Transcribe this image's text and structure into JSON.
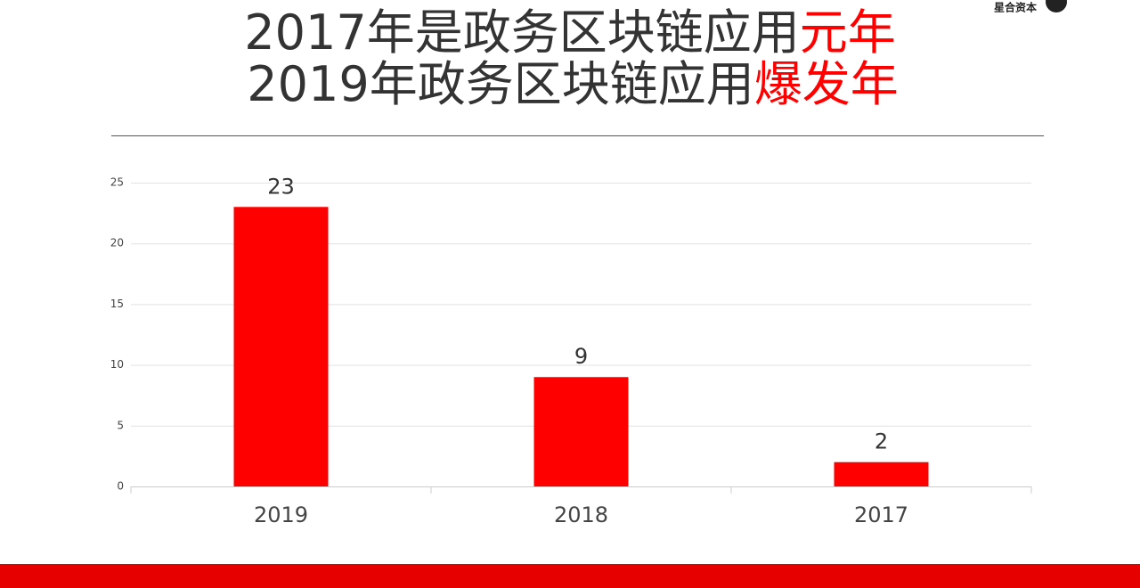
{
  "header": {
    "title_lines": [
      [
        "2017年是政务区块链应用",
        "元年"
      ],
      [
        "2019年政务区块链应用",
        "爆发年"
      ]
    ],
    "logo": "星合资本"
  },
  "chart_data": {
    "type": "bar",
    "categories": [
      "2019",
      "2018",
      "2017"
    ],
    "values": [
      23,
      9,
      2
    ],
    "color": "#ff0000",
    "ylim": [
      0,
      25
    ],
    "yticks": [
      0,
      5,
      10,
      15,
      20,
      25
    ],
    "grid": true,
    "show_value_labels": true
  }
}
